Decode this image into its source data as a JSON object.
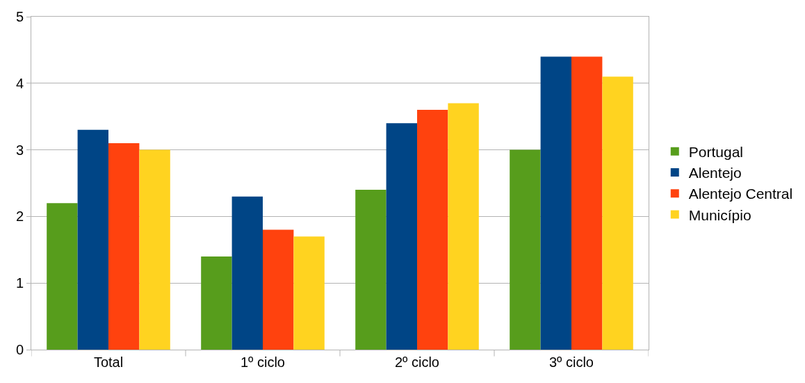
{
  "chart_data": {
    "type": "bar",
    "categories": [
      "Total",
      "1º ciclo",
      "2º ciclo",
      "3º ciclo"
    ],
    "series": [
      {
        "name": "Portugal",
        "color": "#579d1c",
        "values": [
          2.2,
          1.4,
          2.4,
          3.0
        ]
      },
      {
        "name": "Alentejo",
        "color": "#004586",
        "values": [
          3.3,
          2.3,
          3.4,
          4.4
        ]
      },
      {
        "name": "Alentejo Central",
        "color": "#ff420e",
        "values": [
          3.1,
          1.8,
          3.6,
          4.4
        ]
      },
      {
        "name": "Município",
        "color": "#ffd320",
        "values": [
          3.0,
          1.7,
          3.7,
          4.1
        ]
      }
    ],
    "ylim": [
      0,
      5
    ],
    "yticks": [
      0,
      1,
      2,
      3,
      4,
      5
    ],
    "grid": "y",
    "legend": "right"
  }
}
